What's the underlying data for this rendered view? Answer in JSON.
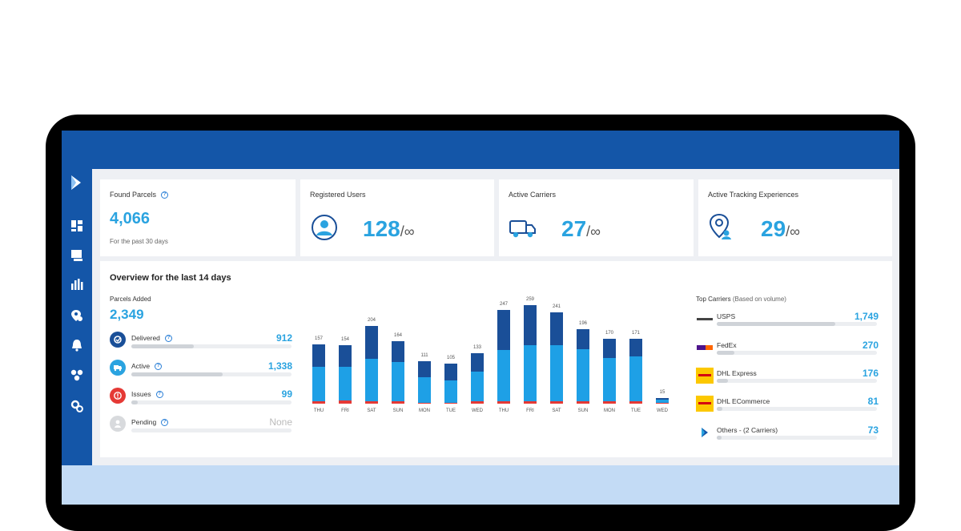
{
  "stats": {
    "found_parcels": {
      "title": "Found Parcels",
      "value": "4,066",
      "note": "For the past 30 days"
    },
    "registered_users": {
      "title": "Registered Users",
      "value": "128",
      "suffix": "/∞"
    },
    "active_carriers": {
      "title": "Active Carriers",
      "value": "27",
      "suffix": "/∞"
    },
    "tracking_experiences": {
      "title": "Active Tracking Experiences",
      "value": "29",
      "suffix": "/∞"
    }
  },
  "overview": {
    "title": "Overview for the last 14 days",
    "parcels_added_label": "Parcels Added",
    "parcels_added_value": "2,349",
    "statuses": [
      {
        "label": "Delivered",
        "value": "912",
        "fill": 0.39,
        "color": "#1a4f98"
      },
      {
        "label": "Active",
        "value": "1,338",
        "fill": 0.57,
        "color": "#2aa3e0"
      },
      {
        "label": "Issues",
        "value": "99",
        "fill": 0.04,
        "color": "#e53935"
      },
      {
        "label": "Pending",
        "value": "None",
        "fill": 0,
        "color": "#cfd3d8"
      }
    ]
  },
  "chart_data": {
    "type": "bar",
    "categories": [
      "THU",
      "FRI",
      "SAT",
      "SUN",
      "MON",
      "TUE",
      "WED",
      "THU",
      "FRI",
      "SAT",
      "SUN",
      "MON",
      "TUE",
      "WED"
    ],
    "totals": [
      "157",
      "154",
      "204",
      "164",
      "111",
      "105",
      "133",
      "247",
      "259",
      "241",
      "196",
      "170",
      "171",
      "15"
    ],
    "series": [
      {
        "values": [
          60,
          58,
          85,
          55,
          42,
          44,
          48,
          105,
          105,
          86,
          52,
          50,
          46,
          4
        ],
        "color": "#1a4f98"
      },
      {
        "values": [
          91,
          88,
          112,
          102,
          67,
          58,
          79,
          135,
          147,
          148,
          137,
          113,
          118,
          9
        ],
        "color": "#1ea0e6"
      },
      {
        "values": [
          6,
          8,
          7,
          7,
          2,
          3,
          6,
          7,
          7,
          7,
          7,
          7,
          7,
          2
        ],
        "color": "#e53935"
      }
    ],
    "ylim": [
      0,
      270
    ]
  },
  "top_carriers": {
    "title": "Top Carriers",
    "subtitle": "(Based on volume)",
    "items": [
      {
        "name": "USPS",
        "value": "1,749",
        "fill": 0.74
      },
      {
        "name": "FedEx",
        "value": "270",
        "fill": 0.11
      },
      {
        "name": "DHL Express",
        "value": "176",
        "fill": 0.07
      },
      {
        "name": "DHL ECommerce",
        "value": "81",
        "fill": 0.035
      },
      {
        "name": "Others - (2 Carriers)",
        "value": "73",
        "fill": 0.03
      }
    ]
  },
  "colors": {
    "brand": "#1456a8",
    "accent": "#2aa3e0",
    "issue": "#e53935",
    "dhl_yellow": "#fcc800"
  },
  "icons": [
    "logo-icon",
    "dashboard-icon",
    "parcels-icon",
    "analytics-icon",
    "location-icon",
    "bell-icon",
    "integrations-icon",
    "settings-icon"
  ]
}
